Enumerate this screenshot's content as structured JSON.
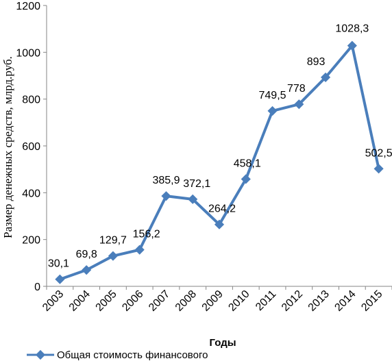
{
  "chart_data": {
    "type": "line",
    "categories": [
      "2003",
      "2004",
      "2005",
      "2006",
      "2007",
      "2008",
      "2009",
      "2010",
      "2011",
      "2012",
      "2013",
      "2014",
      "2015"
    ],
    "series": [
      {
        "name": "Общая стоимость финансового",
        "values": [
          30.1,
          69.8,
          129.7,
          156.2,
          385.9,
          372.1,
          264.2,
          458.1,
          749.5,
          778,
          893,
          1028.3,
          502.5
        ],
        "labels": [
          "30,1",
          "69,8",
          "129,7",
          "156,2",
          "385,9",
          "372,1",
          "264,2",
          "458,1",
          "749,5",
          "778",
          "893",
          "1028,3",
          "502,5"
        ],
        "color": "#4a7ebb"
      }
    ],
    "xlabel": "Годы",
    "ylabel": "Размер денежных средств, млрд.руб.",
    "ylim": [
      0,
      1200
    ],
    "yticks": [
      0,
      200,
      400,
      600,
      800,
      1000,
      1200
    ],
    "grid": false,
    "legend_position": "bottom"
  }
}
